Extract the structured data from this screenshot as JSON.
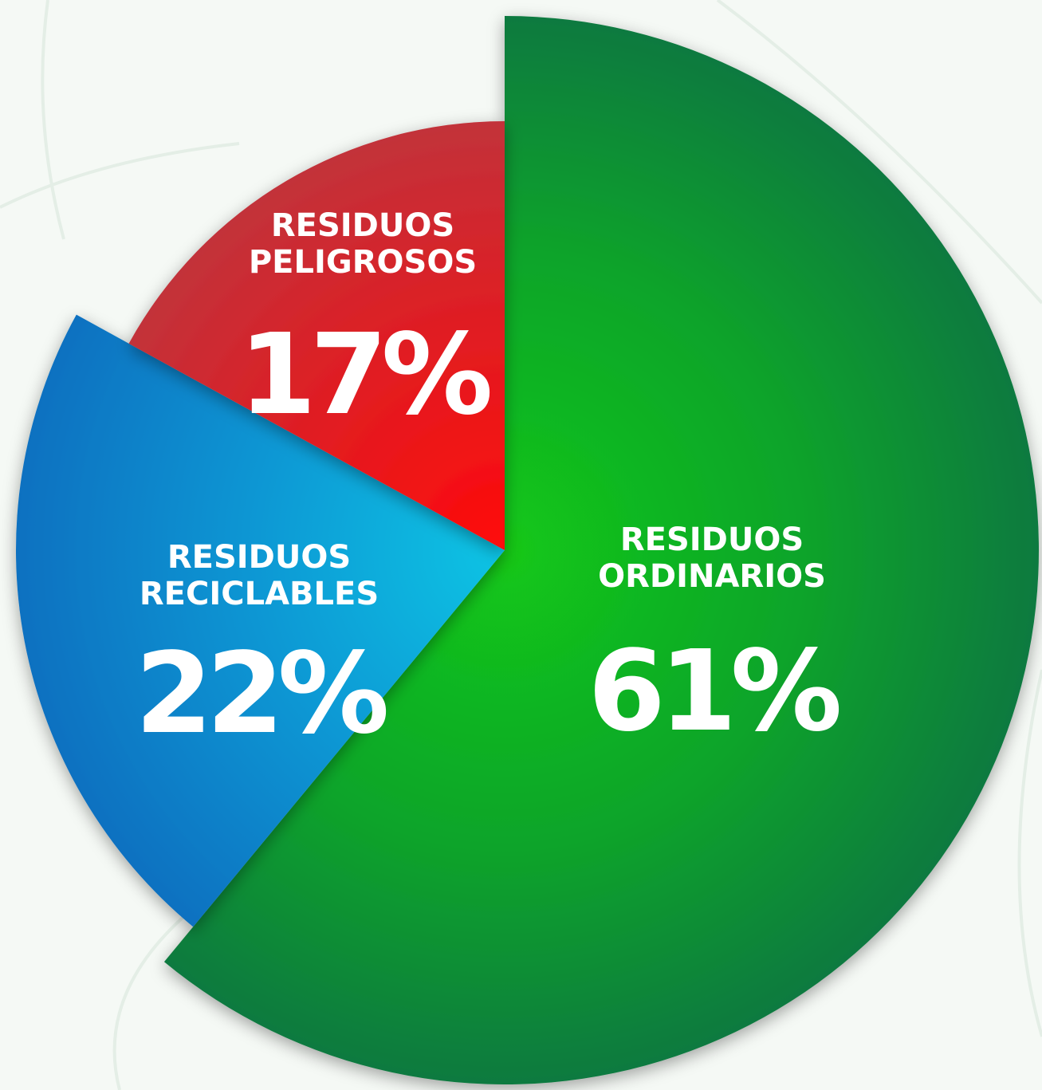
{
  "chart_data": {
    "type": "pie",
    "categories": [
      "RESIDUOS ORDINARIOS",
      "RESIDUOS RECICLABLES",
      "RESIDUOS PELIGROSOS"
    ],
    "values": [
      61,
      22,
      17
    ],
    "value_labels": [
      "61%",
      "22%",
      "17%"
    ],
    "colors": [
      "#12a52a",
      "#0f86cc",
      "#e0202a"
    ]
  }
}
